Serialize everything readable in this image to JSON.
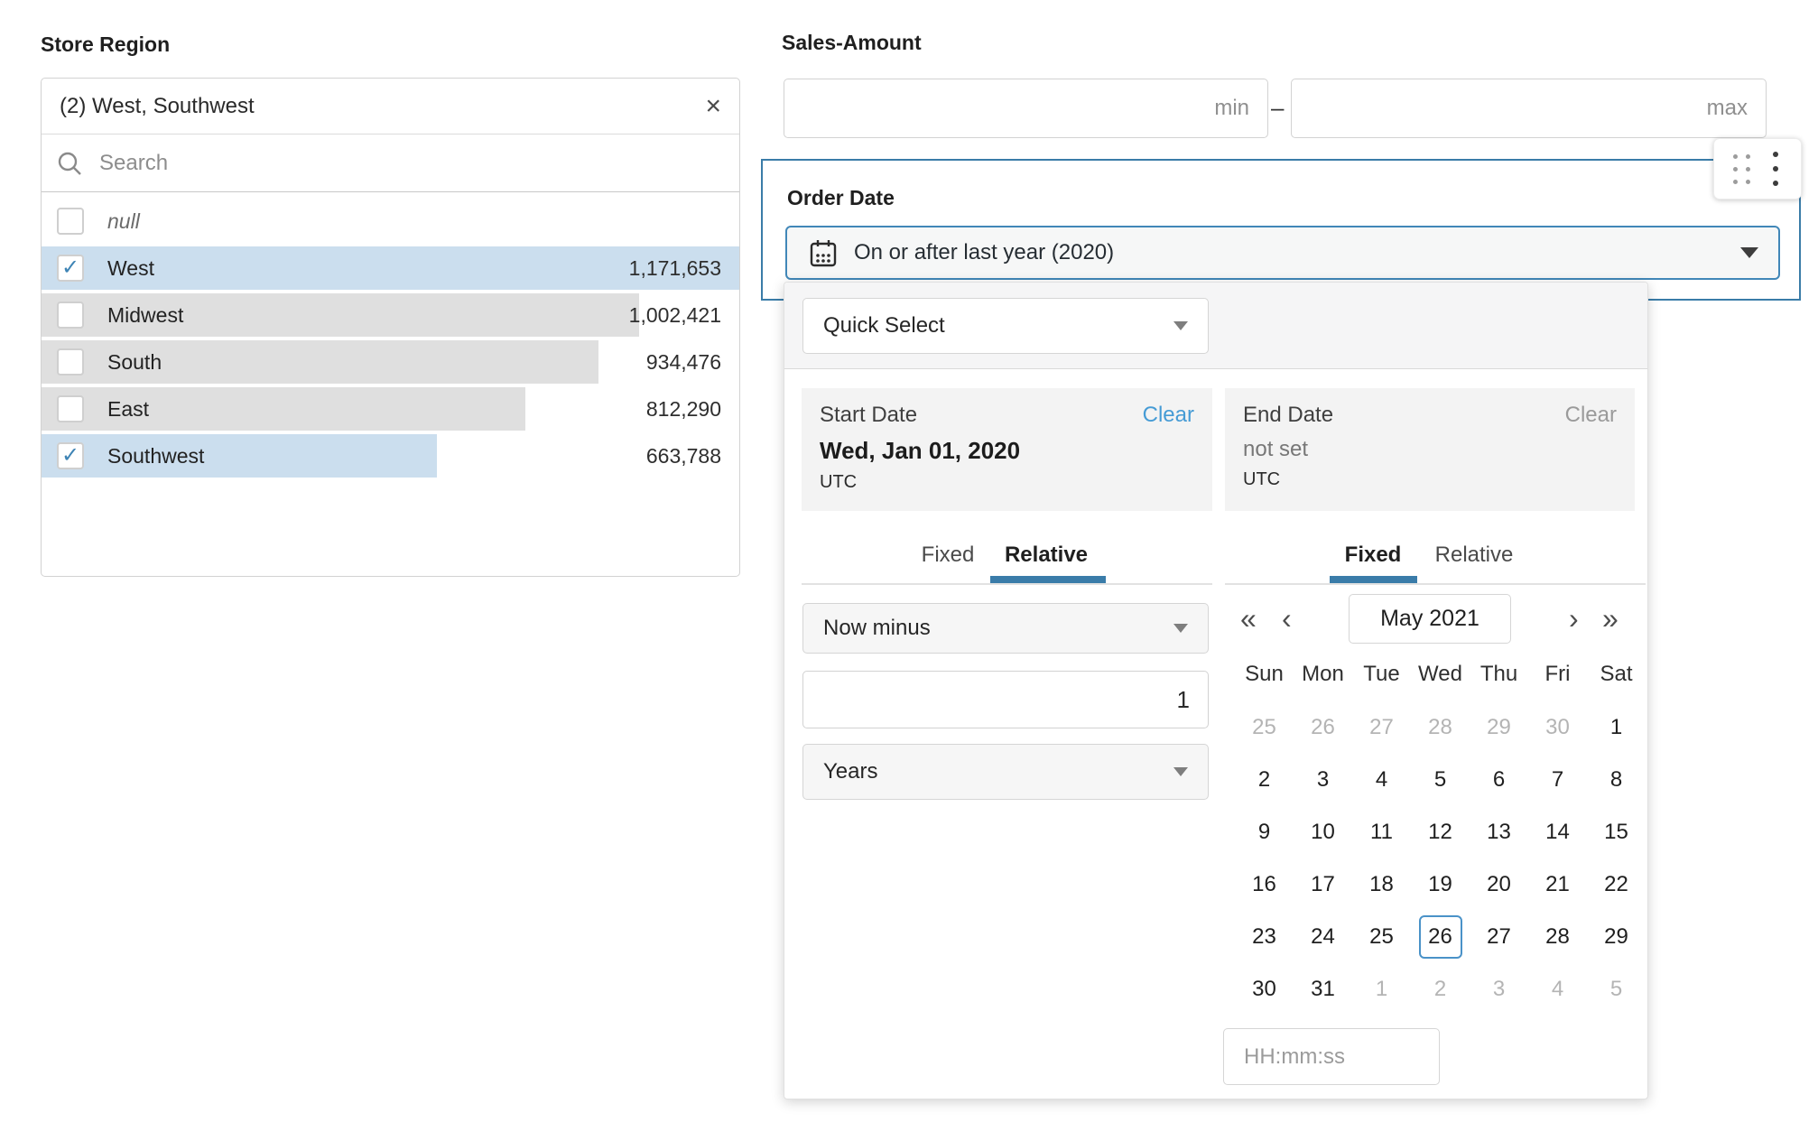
{
  "glyphs": {
    "close": "×",
    "check": "✓",
    "prev_year": "«",
    "prev_month": "‹",
    "next_month": "›",
    "next_year": "»",
    "range_dash": "–"
  },
  "colors": {
    "accent_border": "#3a7ca8",
    "dropdown_border": "#4187b8",
    "link_blue": "#459bd5",
    "bar_selected": "#cbdeee",
    "bar_default": "#dfdfdf",
    "check_blue": "#3e84b5",
    "selected_day_border": "#4a92c8"
  },
  "store_region": {
    "label": "Store Region",
    "selected_summary": "(2) West, Southwest",
    "search_placeholder": "Search",
    "null_label": "null",
    "items": [
      {
        "label": "West",
        "value": "1,171,653",
        "checked": true,
        "bar_pct": 100
      },
      {
        "label": "Midwest",
        "value": "1,002,421",
        "checked": false,
        "bar_pct": 85.6
      },
      {
        "label": "South",
        "value": "934,476",
        "checked": false,
        "bar_pct": 79.8
      },
      {
        "label": "East",
        "value": "812,290",
        "checked": false,
        "bar_pct": 69.3
      },
      {
        "label": "Southwest",
        "value": "663,788",
        "checked": true,
        "bar_pct": 56.7
      }
    ]
  },
  "sales_amount": {
    "label": "Sales-Amount",
    "min_placeholder": "min",
    "max_placeholder": "max"
  },
  "order_date": {
    "label": "Order Date",
    "selected_option": "On or after last year (2020)"
  },
  "date_picker": {
    "quick_select_label": "Quick Select",
    "start_date": {
      "label": "Start Date",
      "clear_label": "Clear",
      "value": "Wed, Jan 01, 2020",
      "timezone": "UTC"
    },
    "end_date": {
      "label": "End Date",
      "clear_label": "Clear",
      "value": "not set",
      "timezone": "UTC"
    },
    "start_tabs": {
      "fixed": "Fixed",
      "relative": "Relative",
      "active": "Relative"
    },
    "end_tabs": {
      "fixed": "Fixed",
      "relative": "Relative",
      "active": "Fixed"
    },
    "relative_controls": {
      "operator": "Now minus",
      "amount": "1",
      "unit": "Years"
    },
    "calendar": {
      "month_label": "May 2021",
      "weekdays": [
        "Sun",
        "Mon",
        "Tue",
        "Wed",
        "Thu",
        "Fri",
        "Sat"
      ],
      "days": [
        {
          "d": "25",
          "muted": true
        },
        {
          "d": "26",
          "muted": true
        },
        {
          "d": "27",
          "muted": true
        },
        {
          "d": "28",
          "muted": true
        },
        {
          "d": "29",
          "muted": true
        },
        {
          "d": "30",
          "muted": true
        },
        {
          "d": "1"
        },
        {
          "d": "2"
        },
        {
          "d": "3"
        },
        {
          "d": "4"
        },
        {
          "d": "5"
        },
        {
          "d": "6"
        },
        {
          "d": "7"
        },
        {
          "d": "8"
        },
        {
          "d": "9"
        },
        {
          "d": "10"
        },
        {
          "d": "11"
        },
        {
          "d": "12"
        },
        {
          "d": "13"
        },
        {
          "d": "14"
        },
        {
          "d": "15"
        },
        {
          "d": "16"
        },
        {
          "d": "17"
        },
        {
          "d": "18"
        },
        {
          "d": "19"
        },
        {
          "d": "20"
        },
        {
          "d": "21"
        },
        {
          "d": "22"
        },
        {
          "d": "23"
        },
        {
          "d": "24"
        },
        {
          "d": "25"
        },
        {
          "d": "26",
          "selected": true
        },
        {
          "d": "27"
        },
        {
          "d": "28"
        },
        {
          "d": "29"
        },
        {
          "d": "30"
        },
        {
          "d": "31"
        },
        {
          "d": "1",
          "muted": true
        },
        {
          "d": "2",
          "muted": true
        },
        {
          "d": "3",
          "muted": true
        },
        {
          "d": "4",
          "muted": true
        },
        {
          "d": "5",
          "muted": true
        }
      ],
      "time_placeholder": "HH:mm:ss"
    }
  }
}
